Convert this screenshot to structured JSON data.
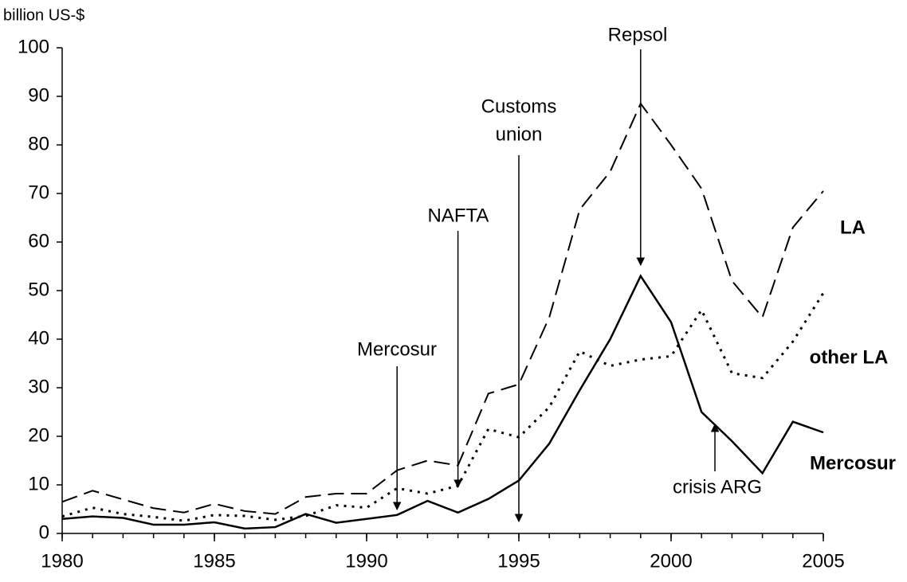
{
  "chart_data": {
    "type": "line",
    "y_label": "billion US-$",
    "x": [
      1980,
      1981,
      1982,
      1983,
      1984,
      1985,
      1986,
      1987,
      1988,
      1989,
      1990,
      1991,
      1992,
      1993,
      1994,
      1995,
      1996,
      1997,
      1998,
      1999,
      2000,
      2001,
      2002,
      2003,
      2004,
      2005
    ],
    "series": [
      {
        "name": "LA",
        "color": "#000000",
        "style": "dashed",
        "values": [
          6.5,
          8.8,
          7,
          5.2,
          4.3,
          6.1,
          4.6,
          4,
          7.5,
          8.2,
          8.2,
          13,
          15,
          14,
          28.8,
          30.7,
          44.5,
          66.7,
          74.5,
          88.5,
          80,
          71,
          52,
          44.5,
          63,
          70.5
        ]
      },
      {
        "name": "other LA",
        "color": "#000000",
        "style": "dotted",
        "values": [
          3.5,
          5.3,
          4,
          3.4,
          2.6,
          3.8,
          3.6,
          2.8,
          3.6,
          5.8,
          5.3,
          9.3,
          8.2,
          9.8,
          21.5,
          19.8,
          26,
          37.5,
          34.5,
          35.8,
          36.5,
          46,
          33,
          32,
          39.5,
          49.5
        ]
      },
      {
        "name": "Mercosur",
        "color": "#000000",
        "style": "solid",
        "values": [
          3,
          3.5,
          3.2,
          1.8,
          1.8,
          2.3,
          1,
          1.3,
          4,
          2.2,
          3,
          3.8,
          6.7,
          4.3,
          7.1,
          10.9,
          18.5,
          29.5,
          40,
          53,
          43.5,
          25,
          19,
          12.4,
          23,
          20.8
        ]
      }
    ],
    "annotations": [
      {
        "lines": [
          "Mercosur"
        ]
      },
      {
        "lines": [
          "NAFTA"
        ]
      },
      {
        "lines": [
          "Customs",
          "union"
        ]
      },
      {
        "lines": [
          "Repsol"
        ]
      },
      {
        "lines": [
          "crisis ARG"
        ]
      }
    ],
    "xlim": [
      1980,
      2005
    ],
    "xticks": [
      1980,
      1985,
      1990,
      1995,
      2000,
      2005
    ],
    "ylim": [
      0,
      100
    ],
    "yticks": [
      0,
      10,
      20,
      30,
      40,
      50,
      60,
      70,
      80,
      90,
      100
    ],
    "grid": false
  }
}
